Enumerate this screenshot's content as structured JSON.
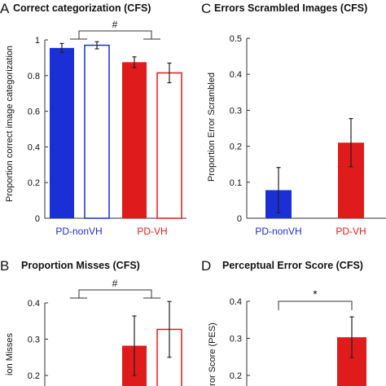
{
  "colors": {
    "pd_nonvh": "#1a2fd6",
    "pd_vh": "#e01b1b",
    "axis": "#333333",
    "text": "#111111"
  },
  "chart_data": [
    {
      "panel": "A",
      "type": "bar",
      "title": "Correct categorization (CFS)",
      "ylabel": "Proportion correct image categorization",
      "xlabel": "",
      "ylim": [
        0,
        1
      ],
      "yticks": [
        0,
        0.2,
        0.4,
        0.6,
        0.8,
        1
      ],
      "ytick_labels": [
        "0",
        "0.2",
        "0.4",
        "0.6",
        "0.8",
        "1"
      ],
      "group_labels": [
        "PD-nonVH",
        "PD-VH"
      ],
      "bars": [
        {
          "group": "PD-nonVH",
          "fill": "solid",
          "color": "#1a2fd6",
          "value": 0.955,
          "err": 0.025
        },
        {
          "group": "PD-nonVH",
          "fill": "open",
          "color": "#1a2fd6",
          "value": 0.97,
          "err": 0.02
        },
        {
          "group": "PD-VH",
          "fill": "solid",
          "color": "#e01b1b",
          "value": 0.875,
          "err": 0.03
        },
        {
          "group": "PD-VH",
          "fill": "open",
          "color": "#e01b1b",
          "value": 0.815,
          "err": 0.055
        }
      ],
      "annotation": "#"
    },
    {
      "panel": "C",
      "type": "bar",
      "title": "Errors Scrambled Images (CFS)",
      "ylabel": "Proportion Error Scrambled",
      "xlabel": "",
      "ylim": [
        0,
        0.5
      ],
      "yticks": [
        0,
        0.1,
        0.2,
        0.3,
        0.4,
        0.5
      ],
      "ytick_labels": [
        "0",
        "0.1",
        "0.2",
        "0.3",
        "0.4",
        "0.5"
      ],
      "group_labels": [
        "PD-nonVH",
        "PD-VH"
      ],
      "bars": [
        {
          "group": "PD-nonVH",
          "fill": "solid",
          "color": "#1a2fd6",
          "value": 0.078,
          "err": 0.063
        },
        {
          "group": "PD-VH",
          "fill": "solid",
          "color": "#e01b1b",
          "value": 0.21,
          "err": 0.067
        }
      ]
    },
    {
      "panel": "B",
      "type": "bar",
      "title": "Proportion Misses (CFS)",
      "ylabel": "ion Misses",
      "xlabel": "",
      "ylim": [
        0.15,
        0.4
      ],
      "yticks": [
        0.2,
        0.3,
        0.4
      ],
      "ytick_labels": [
        "0.2",
        "0.3",
        "0.4"
      ],
      "bars": [
        {
          "group": "PD-VH",
          "fill": "solid",
          "color": "#e01b1b",
          "value": 0.282,
          "err": 0.082
        },
        {
          "group": "PD-VH",
          "fill": "open",
          "color": "#e01b1b",
          "value": 0.327,
          "err": 0.077
        }
      ],
      "annotation": "#"
    },
    {
      "panel": "D",
      "type": "bar",
      "title": "Perceptual Error Score (CFS)",
      "ylabel": "ror Score (PES)",
      "xlabel": "",
      "ylim": [
        0.15,
        0.4
      ],
      "yticks": [
        0.2,
        0.3,
        0.4
      ],
      "ytick_labels": [
        "0.2",
        "0.3",
        "0.4"
      ],
      "bars": [
        {
          "group": "PD-VH",
          "fill": "solid",
          "color": "#e01b1b",
          "value": 0.303,
          "err": 0.055
        }
      ],
      "annotation": "*"
    }
  ]
}
